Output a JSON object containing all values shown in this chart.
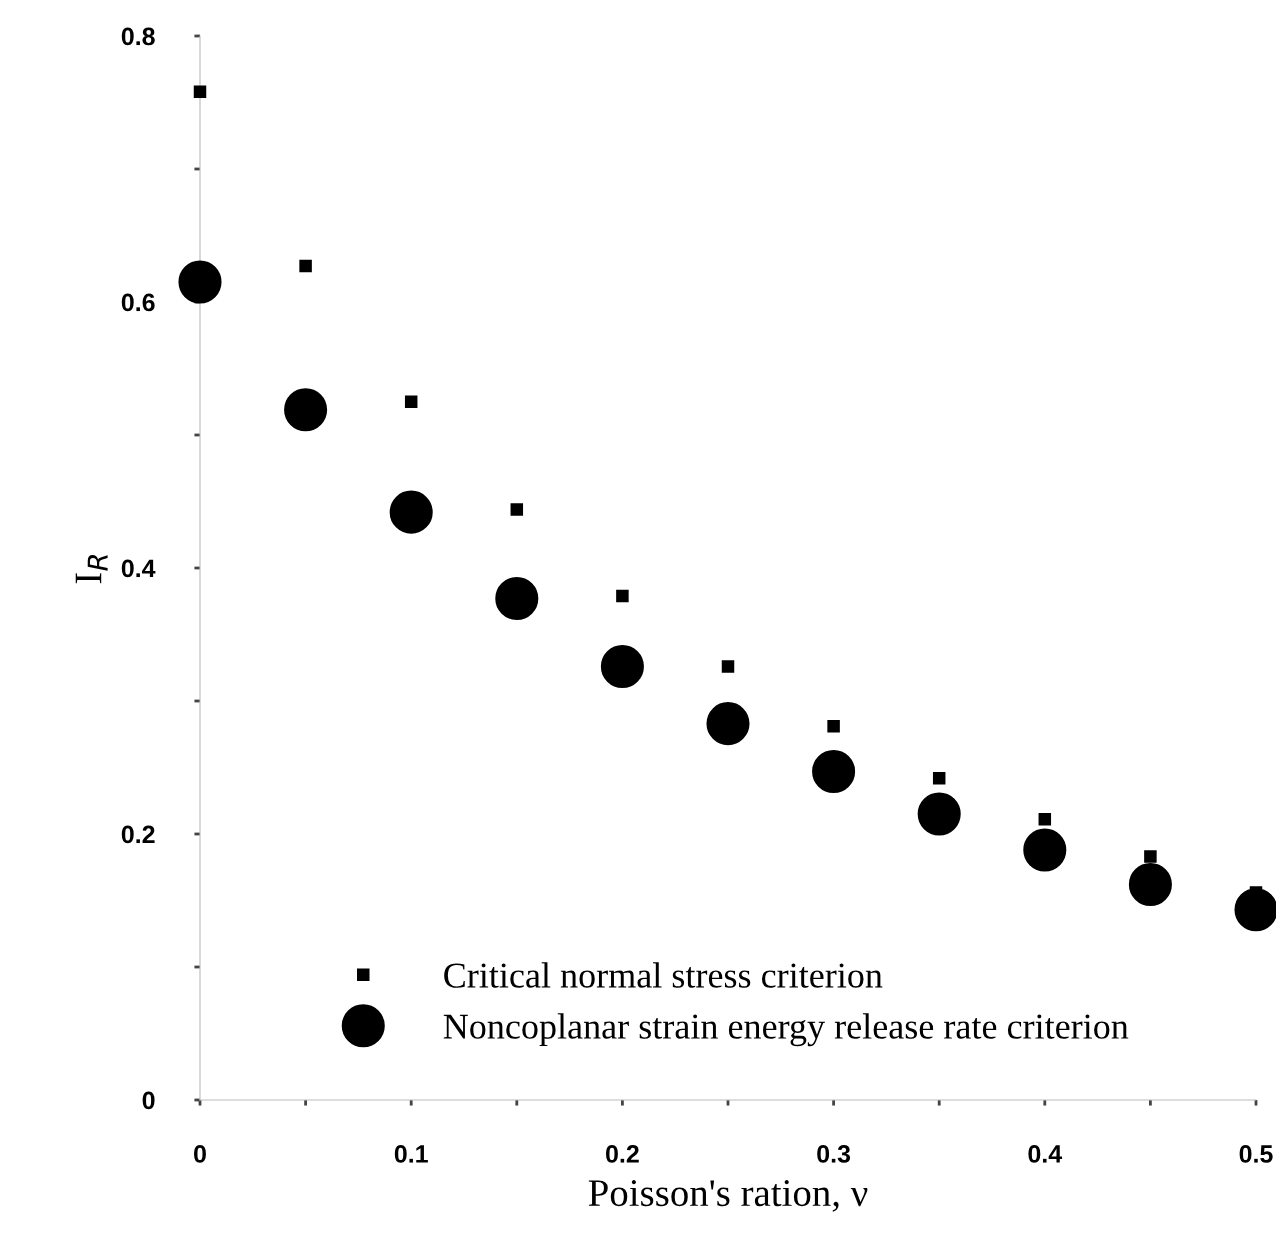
{
  "chart_data": {
    "type": "scatter",
    "xlabel": "Poisson's ration, ν",
    "ylabel": "I$_{R}$",
    "x": [
      0,
      0.05,
      0.1,
      0.15,
      0.2,
      0.25,
      0.3,
      0.35,
      0.4,
      0.45,
      0.5
    ],
    "series": [
      {
        "name": "Critical normal stress criterion",
        "color": "#000000",
        "marker": "square",
        "values": [
          0.758,
          0.627,
          0.525,
          0.444,
          0.379,
          0.326,
          0.281,
          0.242,
          0.211,
          0.183,
          0.156
        ]
      },
      {
        "name": "Noncoplanar strain energy release rate criterion",
        "color": "#000000",
        "marker": "circle",
        "values": [
          0.615,
          0.519,
          0.442,
          0.377,
          0.326,
          0.283,
          0.247,
          0.215,
          0.188,
          0.162,
          0.143
        ]
      }
    ],
    "xlim": [
      0,
      0.5
    ],
    "ylim": [
      0,
      0.8
    ],
    "xticks": [
      0,
      {
        "value": 0.05,
        "label": null
      },
      0.1,
      {
        "value": 0.15,
        "label": null
      },
      0.2,
      {
        "value": 0.25,
        "label": null
      },
      0.3,
      {
        "value": 0.35,
        "label": null
      },
      0.4,
      {
        "value": 0.45,
        "label": null
      },
      0.5
    ],
    "yticks": [
      0,
      {
        "value": 0.1,
        "label": null
      },
      0.2,
      {
        "value": 0.3,
        "label": null
      },
      0.4,
      {
        "value": 0.5,
        "label": null
      },
      0.6,
      {
        "value": 0.7,
        "label": null
      },
      0.8
    ],
    "legend": "bottom",
    "grid": false
  }
}
